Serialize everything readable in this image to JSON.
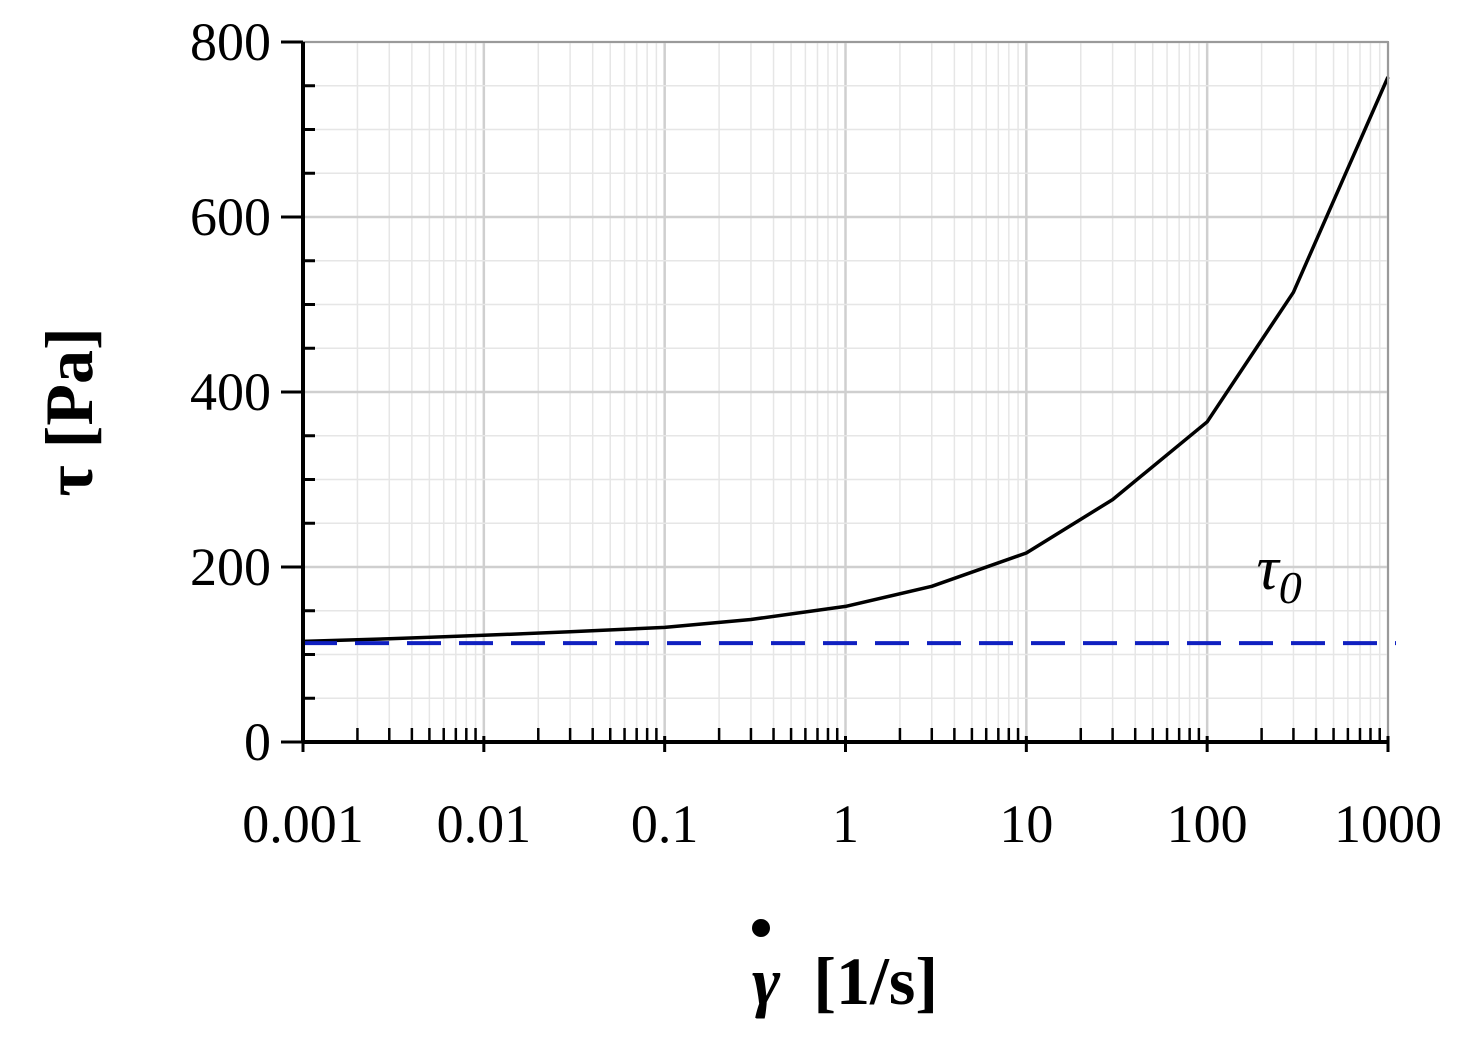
{
  "chart_data": {
    "type": "line",
    "x_scale": "log",
    "xlim": [
      0.001,
      1000
    ],
    "ylim": [
      0,
      800
    ],
    "xlabel": "[1/s]",
    "xlabel_symbol": "γ",
    "ylabel": "τ [Pa]",
    "x_ticks": [
      {
        "value": 0.001,
        "label": "0.001"
      },
      {
        "value": 0.01,
        "label": "0.01"
      },
      {
        "value": 0.1,
        "label": "0.1"
      },
      {
        "value": 1,
        "label": "1"
      },
      {
        "value": 10,
        "label": "10"
      },
      {
        "value": 100,
        "label": "100"
      },
      {
        "value": 1000,
        "label": "1000"
      }
    ],
    "y_ticks": [
      {
        "value": 0,
        "label": "0"
      },
      {
        "value": 200,
        "label": "200"
      },
      {
        "value": 400,
        "label": "400"
      },
      {
        "value": 600,
        "label": "600"
      },
      {
        "value": 800,
        "label": "800"
      }
    ],
    "grid": true,
    "series": [
      {
        "color": "#000000",
        "style": "solid",
        "x": [
          0.001,
          0.003,
          0.01,
          0.03,
          0.1,
          0.3,
          1,
          3,
          10,
          30,
          100,
          300,
          1000
        ],
        "y": [
          115,
          118,
          122,
          126,
          131,
          140,
          155,
          178,
          216,
          277,
          366,
          514,
          760
        ]
      },
      {
        "color": "#1020c0",
        "style": "dashed",
        "x": [
          0.001,
          1000
        ],
        "y": [
          113,
          113
        ]
      }
    ],
    "annotations": [
      {
        "text": "τ",
        "subscript": "0",
        "x": 250,
        "y": 175
      }
    ]
  }
}
